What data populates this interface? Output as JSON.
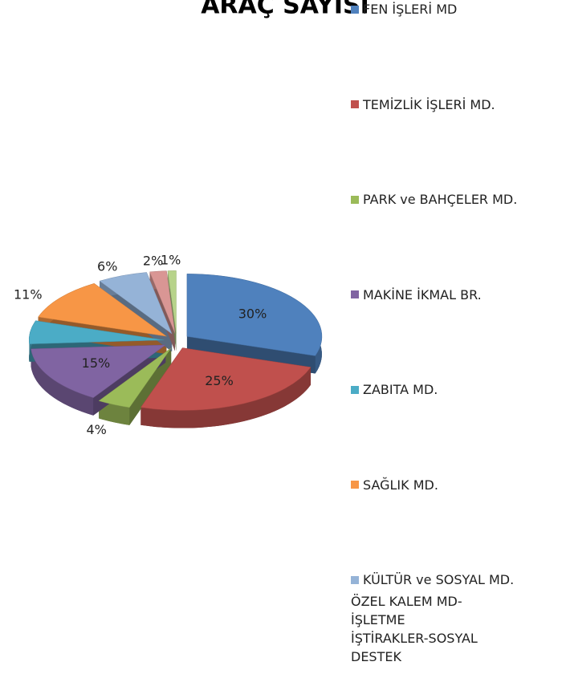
{
  "chart_data": {
    "type": "pie",
    "title": "ARAÇ SAYISI",
    "categories": [
      "FEN İŞLERİ MD",
      "TEMİZLİK  İŞLERİ MD.",
      "PARK ve BAHÇELER MD.",
      "MAKİNE İKMAL BR.",
      "ZABITA MD.",
      "SAĞLIK MD.",
      "KÜLTÜR ve SOSYAL MD.",
      "ÖZEL KALEM MD-İŞLETME",
      "İŞTİRAKLER-SOSYAL DESTEK"
    ],
    "values": [
      30,
      25,
      4,
      15,
      6,
      11,
      6,
      2,
      1
    ],
    "value_labels": [
      "30%",
      "25%",
      "4%",
      "15%",
      "6%",
      "11%",
      "6%",
      "2%",
      "1%"
    ],
    "colors": [
      "#4f81bd",
      "#c0504d",
      "#9bbb59",
      "#8064a2",
      "#4bacc6",
      "#f79646",
      "#95b3d7",
      "#d99694",
      "#b7d38a"
    ],
    "legend": "right"
  }
}
